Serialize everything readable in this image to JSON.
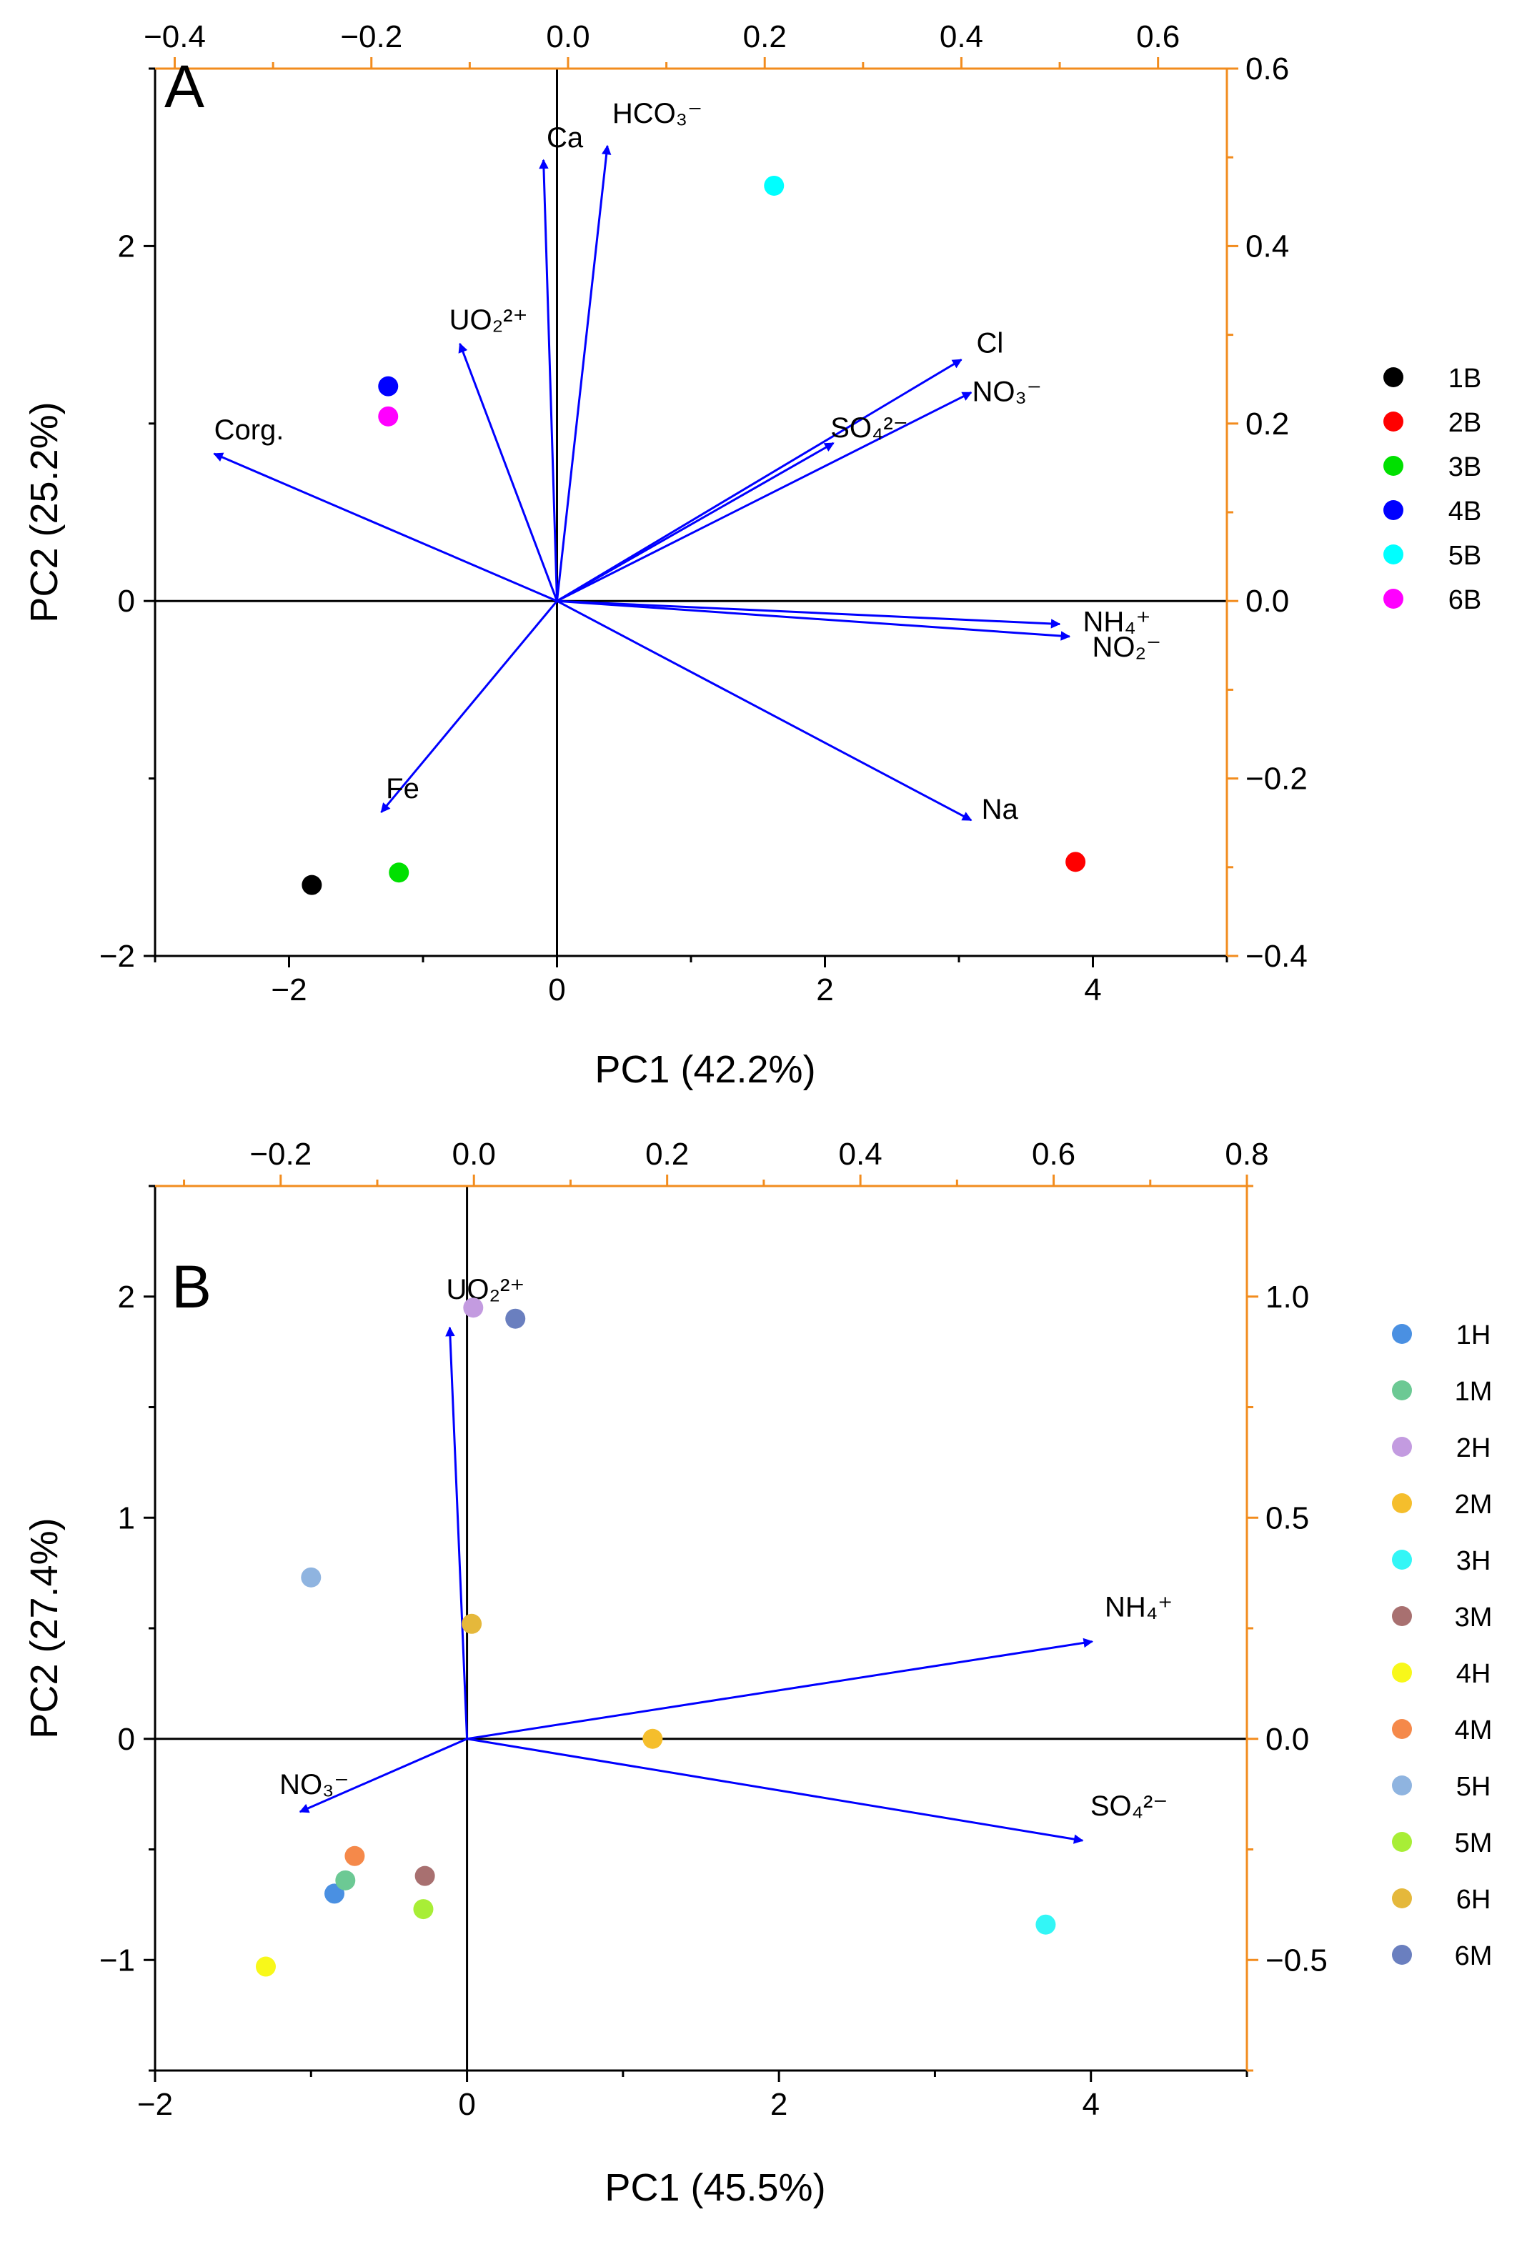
{
  "colors": {
    "arrow": "#0000ff",
    "right_axis": "#f28c1e",
    "axis": "#000000"
  },
  "chart_data": [
    {
      "panel_label": "A",
      "type": "scatter",
      "title": "",
      "xlabel": "PC1 (42.2%)",
      "ylabel": "PC2 (25.2%)",
      "xlim": [
        -3,
        5
      ],
      "ylim": [
        -2,
        3
      ],
      "top_xlim": [
        -0.42,
        0.67
      ],
      "right_ylim": [
        -0.4,
        0.6
      ],
      "x_ticks": [
        -2,
        0,
        2,
        4
      ],
      "x_tick_labels": [
        "−2",
        "0",
        "2",
        "4"
      ],
      "y_ticks": [
        -2,
        0,
        2
      ],
      "y_tick_labels": [
        "−2",
        "0",
        "2"
      ],
      "top_ticks": [
        -0.4,
        -0.2,
        0.0,
        0.2,
        0.4,
        0.6
      ],
      "top_tick_labels": [
        "−0.4",
        "−0.2",
        "0.0",
        "0.2",
        "0.4",
        "0.6"
      ],
      "right_ticks": [
        -0.4,
        -0.2,
        0.0,
        0.2,
        0.4,
        0.6
      ],
      "right_tick_labels": [
        "−0.4",
        "−0.2",
        "0.0",
        "0.2",
        "0.4",
        "0.6"
      ],
      "points": [
        {
          "name": "1B",
          "x": -1.83,
          "y": -1.6,
          "color": "#000000"
        },
        {
          "name": "2B",
          "x": 3.87,
          "y": -1.47,
          "color": "#ff0000"
        },
        {
          "name": "3B",
          "x": -1.18,
          "y": -1.53,
          "color": "#00e000"
        },
        {
          "name": "4B",
          "x": -1.26,
          "y": 1.21,
          "color": "#0000ff"
        },
        {
          "name": "5B",
          "x": 1.62,
          "y": 2.34,
          "color": "#00ffff"
        },
        {
          "name": "6B",
          "x": -1.26,
          "y": 1.04,
          "color": "#ff00ff"
        }
      ],
      "loadings": [
        {
          "label": "Ca",
          "x": -0.025,
          "y": 0.497
        },
        {
          "label": "HCO₃⁻",
          "x": 0.04,
          "y": 0.513
        },
        {
          "label": "UO₂²⁺",
          "x": -0.11,
          "y": 0.29
        },
        {
          "label": "Cl",
          "x": 0.4,
          "y": 0.272
        },
        {
          "label": "NO₃⁻",
          "x": 0.41,
          "y": 0.235
        },
        {
          "label": "SO₄²⁻",
          "x": 0.27,
          "y": 0.178
        },
        {
          "label": "Corg.",
          "x": -0.36,
          "y": 0.166
        },
        {
          "label": "NH₄⁺",
          "x": 0.5,
          "y": -0.026
        },
        {
          "label": "NO₂⁻",
          "x": 0.51,
          "y": -0.04
        },
        {
          "label": "Na",
          "x": 0.41,
          "y": -0.247
        },
        {
          "label": "Fe",
          "x": -0.19,
          "y": -0.238
        }
      ],
      "legend": [
        "1B",
        "2B",
        "3B",
        "4B",
        "5B",
        "6B"
      ],
      "legend_position": "right"
    },
    {
      "panel_label": "B",
      "type": "scatter",
      "title": "",
      "xlabel": "PC1 (45.5%)",
      "ylabel": "PC2 (27.4%)",
      "xlim": [
        -2,
        5
      ],
      "ylim": [
        -1.5,
        2.5
      ],
      "top_xlim": [
        -0.33,
        0.8
      ],
      "right_ylim": [
        -0.75,
        1.25
      ],
      "x_ticks": [
        -2,
        0,
        2,
        4
      ],
      "x_tick_labels": [
        "−2",
        "0",
        "2",
        "4"
      ],
      "y_ticks": [
        -1,
        0,
        1,
        2
      ],
      "y_tick_labels": [
        "−1",
        "0",
        "1",
        "2"
      ],
      "top_ticks": [
        -0.2,
        0.0,
        0.2,
        0.4,
        0.6,
        0.8
      ],
      "top_tick_labels": [
        "−0.2",
        "0.0",
        "0.2",
        "0.4",
        "0.6",
        "0.8"
      ],
      "right_ticks": [
        -0.5,
        0.0,
        0.5,
        1.0
      ],
      "right_tick_labels": [
        "−0.5",
        "0.0",
        "0.5",
        "1.0"
      ],
      "points": [
        {
          "name": "1H",
          "x": -0.85,
          "y": -0.7,
          "color": "#4a90e2"
        },
        {
          "name": "1M",
          "x": -0.78,
          "y": -0.64,
          "color": "#6cc994"
        },
        {
          "name": "2H",
          "x": 0.04,
          "y": 1.95,
          "color": "#c39be0"
        },
        {
          "name": "2M",
          "x": 1.19,
          "y": 0.0,
          "color": "#f5be2c"
        },
        {
          "name": "3H",
          "x": 3.71,
          "y": -0.84,
          "color": "#33f6f6"
        },
        {
          "name": "3M",
          "x": -0.27,
          "y": -0.62,
          "color": "#a87070"
        },
        {
          "name": "4H",
          "x": -1.29,
          "y": -1.03,
          "color": "#f8f81a"
        },
        {
          "name": "4M",
          "x": -0.72,
          "y": -0.53,
          "color": "#f5894a"
        },
        {
          "name": "5H",
          "x": -1.0,
          "y": 0.73,
          "color": "#8fb4e0"
        },
        {
          "name": "5M",
          "x": -0.28,
          "y": -0.77,
          "color": "#a8ee36"
        },
        {
          "name": "6H",
          "x": 0.03,
          "y": 0.52,
          "color": "#e5b83b"
        },
        {
          "name": "6M",
          "x": 0.31,
          "y": 1.9,
          "color": "#6a7fbf"
        }
      ],
      "loadings": [
        {
          "label": "UO₂²⁺",
          "x": -0.025,
          "y": 0.93
        },
        {
          "label": "NH₄⁺",
          "x": 0.64,
          "y": 0.22
        },
        {
          "label": "SO₄²⁻",
          "x": 0.63,
          "y": -0.23
        },
        {
          "label": "NO₃⁻",
          "x": -0.18,
          "y": -0.165
        }
      ],
      "legend": [
        "1H",
        "1M",
        "2H",
        "2M",
        "3H",
        "3M",
        "4H",
        "4M",
        "5H",
        "5M",
        "6H",
        "6M"
      ],
      "legend_position": "right"
    }
  ]
}
